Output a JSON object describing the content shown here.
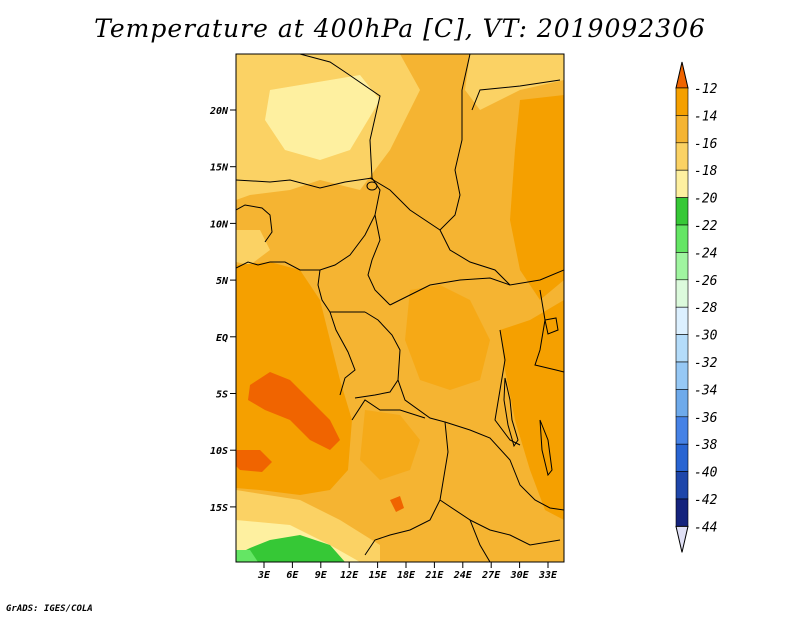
{
  "title": "Temperature at 400hPa [C], VT: 2019092306",
  "footer": "GrADS: IGES/COLA",
  "map": {
    "lat_labels": [
      "20N",
      "15N",
      "10N",
      "5N",
      "EQ",
      "5S",
      "10S",
      "15S"
    ],
    "lon_labels": [
      "3E",
      "6E",
      "9E",
      "12E",
      "15E",
      "18E",
      "21E",
      "24E",
      "27E",
      "30E",
      "33E"
    ]
  },
  "colorbar": {
    "labels": [
      "-12",
      "-14",
      "-16",
      "-18",
      "-20",
      "-22",
      "-24",
      "-26",
      "-28",
      "-30",
      "-32",
      "-34",
      "-36",
      "-38",
      "-40",
      "-42",
      "-44"
    ],
    "colors": [
      "#f06400",
      "#f5a000",
      "#f5b432",
      "#fbd264",
      "#fef0a0",
      "#36c836",
      "#64e664",
      "#a0f5a0",
      "#dcfadc",
      "#dcf0ff",
      "#b4dcfa",
      "#96c8f5",
      "#6eaaeb",
      "#4682e6",
      "#2864d2",
      "#1e46aa",
      "#14237d",
      "#0a0a5a",
      "#e0e0f5"
    ]
  }
}
